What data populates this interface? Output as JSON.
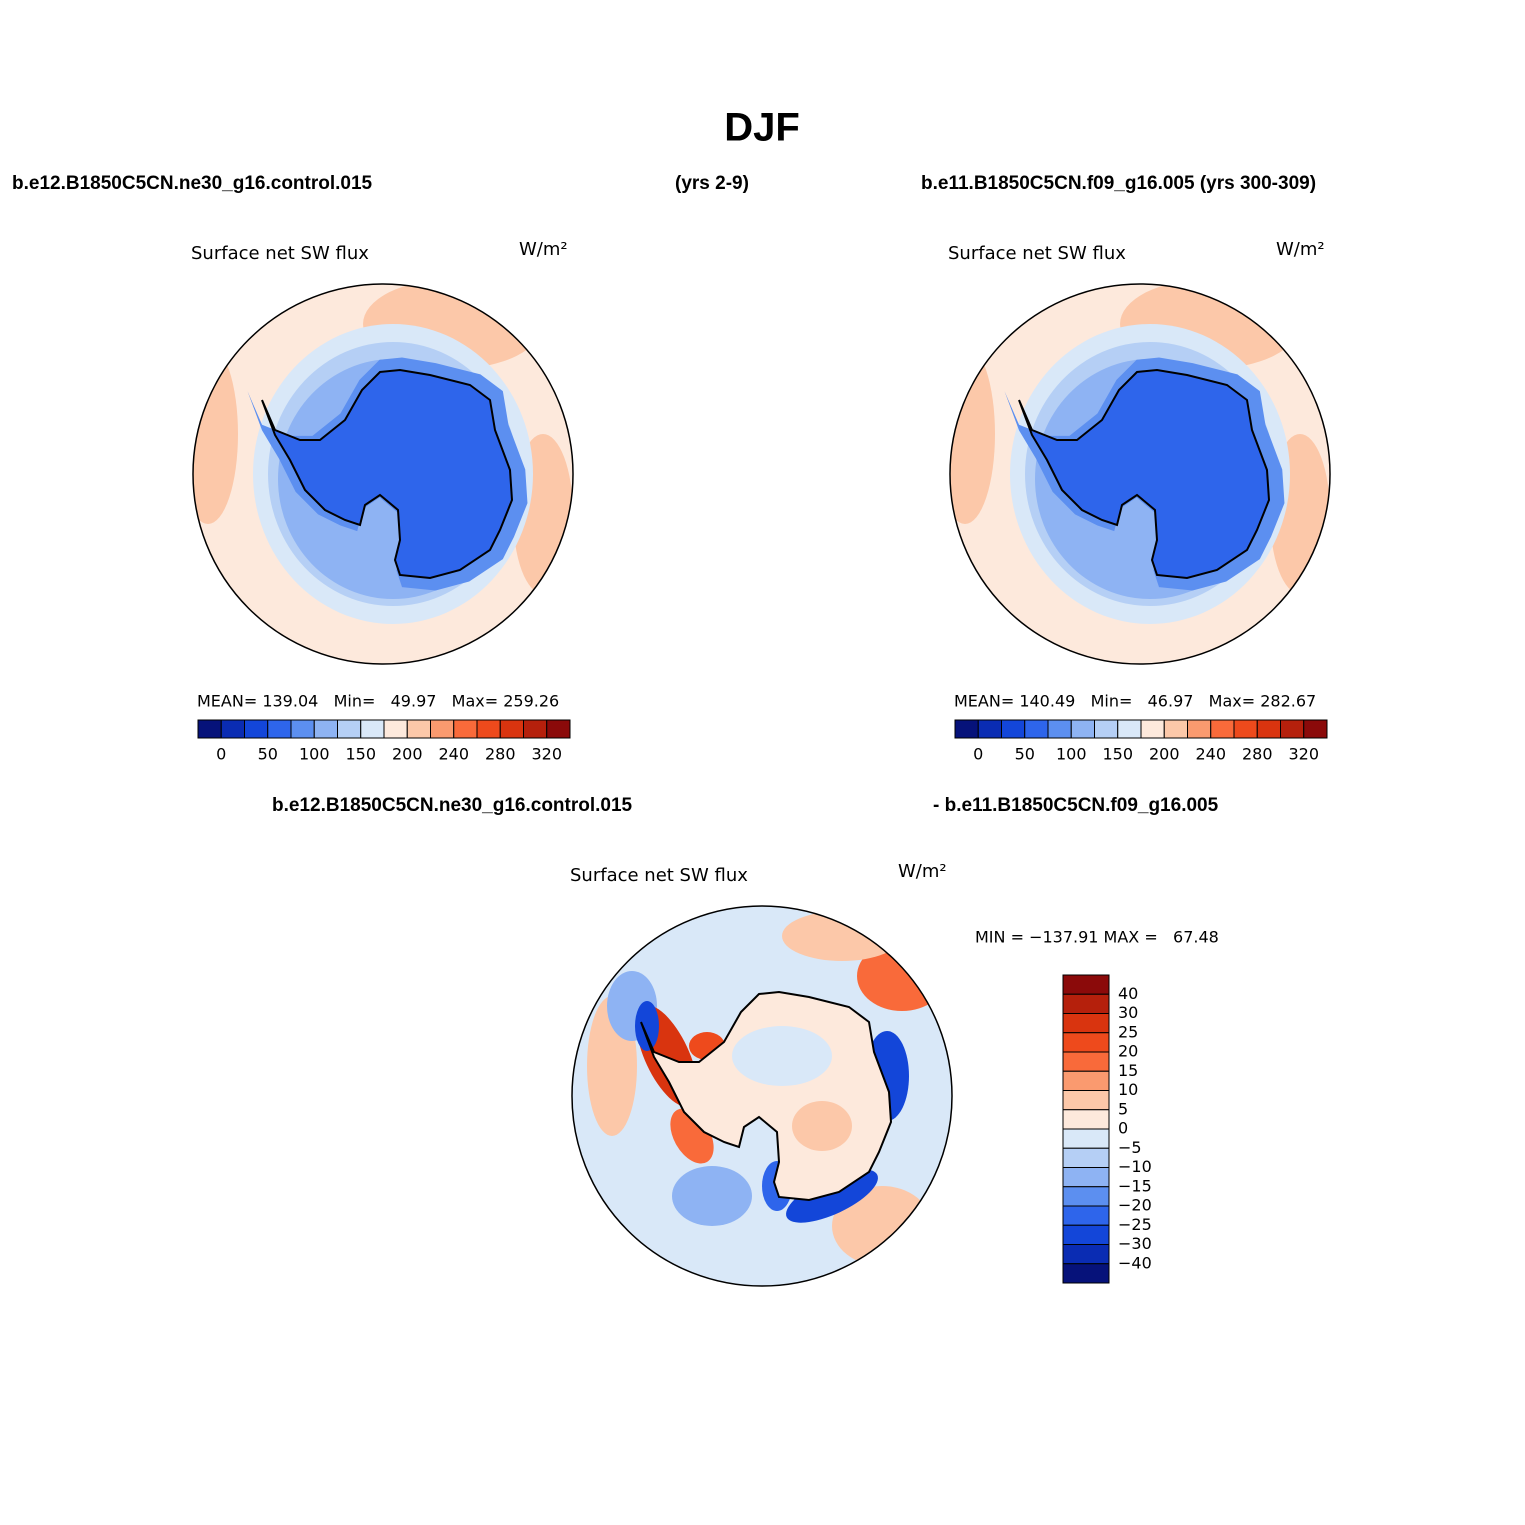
{
  "title": "DJF",
  "header": {
    "left": "b.e12.B1850C5CN.ne30_g16.control.015",
    "middle": "(yrs 2-9)",
    "right": "b.e11.B1850C5CN.f09_g16.005 (yrs 300-309)"
  },
  "colors": [
    "#06127a",
    "#0a2cb3",
    "#1346d9",
    "#2e65eb",
    "#5c8ff0",
    "#8eb3f3",
    "#b5cff5",
    "#d9e8f8",
    "#fde9dc",
    "#fcc8a9",
    "#fa9a6f",
    "#f96a3a",
    "#ee4a1c",
    "#d9340f",
    "#b5200c",
    "#8b0a0a"
  ],
  "panels": [
    {
      "label": "Surface net SW flux",
      "units": "W/m²",
      "stats": "MEAN= 139.04   Min=   49.97   Max= 259.26",
      "colorbar": {
        "labels": [
          "0",
          "50",
          "100",
          "150",
          "200",
          "240",
          "280",
          "320"
        ]
      }
    },
    {
      "label": "Surface net SW flux",
      "units": "W/m²",
      "stats": "MEAN= 140.49   Min=   46.97   Max= 282.67",
      "colorbar": {
        "labels": [
          "0",
          "50",
          "100",
          "150",
          "200",
          "240",
          "280",
          "320"
        ]
      }
    }
  ],
  "diff_header": {
    "left": "b.e12.B1850C5CN.ne30_g16.control.015",
    "right": "- b.e11.B1850C5CN.f09_g16.005"
  },
  "diff_panel": {
    "label": "Surface net SW flux",
    "units": "W/m²",
    "stats": "MIN = −137.91 MAX =   67.48",
    "colorbar": {
      "labels": [
        "40",
        "30",
        "25",
        "20",
        "15",
        "10",
        "5",
        "0",
        "−5",
        "−10",
        "−15",
        "−20",
        "−25",
        "−30",
        "−40"
      ]
    }
  }
}
